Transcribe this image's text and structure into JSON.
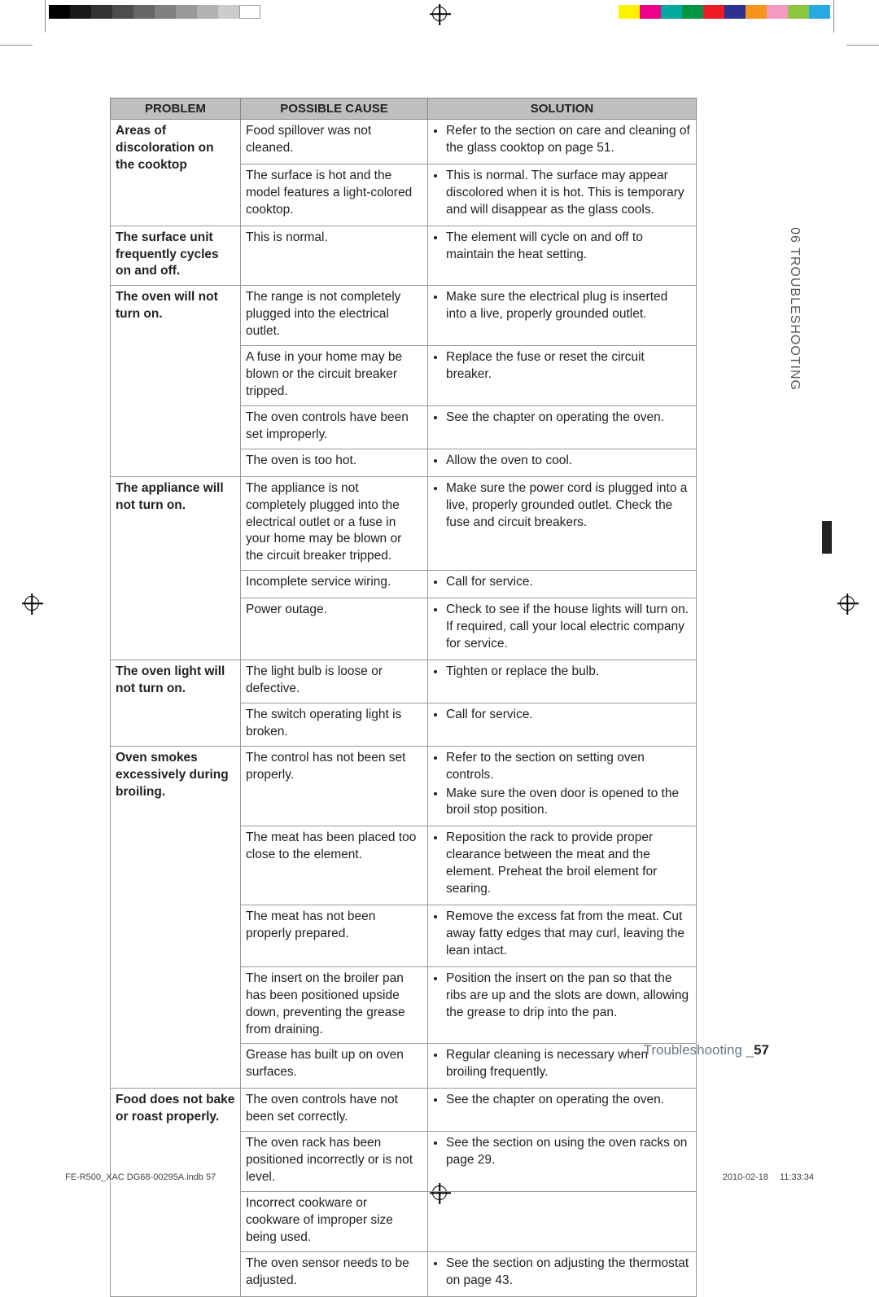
{
  "table": {
    "headers": [
      "PROBLEM",
      "POSSIBLE CAUSE",
      "SOLUTION"
    ],
    "rows": [
      {
        "problem": "Areas of discoloration on the cooktop",
        "causes": [
          {
            "cause": "Food spillover was not cleaned.",
            "solutions": [
              "Refer to the section on care and cleaning of the glass cooktop on page 51."
            ]
          },
          {
            "cause": "The surface is hot and the model features a light-colored cooktop.",
            "solutions": [
              "This is normal. The surface may appear discolored when it is hot. This is temporary and will disappear as the glass cools."
            ]
          }
        ]
      },
      {
        "problem": "The surface unit frequently cycles on and off.",
        "causes": [
          {
            "cause": "This is normal.",
            "solutions": [
              "The element will cycle on and off to maintain the heat setting."
            ]
          }
        ]
      },
      {
        "problem": "The oven will not turn on.",
        "causes": [
          {
            "cause": "The range is not completely plugged into the electrical outlet.",
            "solutions": [
              "Make sure the electrical plug is inserted into a live, properly grounded outlet."
            ]
          },
          {
            "cause": "A fuse in your home may be blown or the circuit breaker tripped.",
            "solutions": [
              "Replace the fuse or reset the circuit breaker."
            ]
          },
          {
            "cause": "The oven controls have been set improperly.",
            "solutions": [
              "See the chapter on operating the oven."
            ]
          },
          {
            "cause": "The oven is too hot.",
            "solutions": [
              "Allow the oven to cool."
            ]
          }
        ]
      },
      {
        "problem": "The appliance will not turn on.",
        "causes": [
          {
            "cause": "The appliance is not completely plugged into the electrical outlet or a fuse in your home may be blown or the circuit breaker tripped.",
            "solutions": [
              "Make sure the power cord is plugged into a live, properly grounded outlet. Check the fuse and circuit breakers."
            ]
          },
          {
            "cause": "Incomplete service wiring.",
            "solutions": [
              "Call for service."
            ]
          },
          {
            "cause": "Power outage.",
            "solutions": [
              "Check to see if the house lights will turn on. If required, call your local electric company for service."
            ]
          }
        ]
      },
      {
        "problem": "The oven light will not turn on.",
        "causes": [
          {
            "cause": "The light bulb is loose or defective.",
            "solutions": [
              "Tighten or replace the bulb."
            ]
          },
          {
            "cause": "The switch operating light is broken.",
            "solutions": [
              "Call for service."
            ]
          }
        ]
      },
      {
        "problem": "Oven smokes excessively during broiling.",
        "causes": [
          {
            "cause": "The control has not been set properly.",
            "solutions": [
              "Refer to the section on setting oven controls.",
              "Make sure the oven door is opened to the broil stop position."
            ]
          },
          {
            "cause": "The meat has been placed too close to the element.",
            "solutions": [
              "Reposition the rack to provide proper clearance between the meat and the element. Preheat the broil element for searing."
            ]
          },
          {
            "cause": "The meat has not been properly prepared.",
            "solutions": [
              "Remove the excess fat from the meat. Cut away fatty edges that may curl, leaving the lean intact."
            ]
          },
          {
            "cause": "The insert on the broiler pan has been positioned upside down, preventing the grease from draining.",
            "solutions": [
              "Position the insert on the pan so that the ribs are up and the slots are down, allowing the grease to drip into the pan."
            ]
          },
          {
            "cause": "Grease has built up on oven surfaces.",
            "solutions": [
              "Regular cleaning is necessary when broiling frequently."
            ]
          }
        ]
      },
      {
        "problem": "Food does not bake or roast properly.",
        "causes": [
          {
            "cause": "The oven controls have not been set correctly.",
            "solutions": [
              "See the chapter on operating the oven."
            ]
          },
          {
            "cause": "The oven rack has been positioned incorrectly or is not level.",
            "solutions": [
              "See the section on using the oven racks on page 29."
            ]
          },
          {
            "cause": "Incorrect cookware or cookware of improper size being used.",
            "solutions": []
          },
          {
            "cause": "The oven sensor needs to be adjusted.",
            "solutions": [
              "See the section on adjusting the thermostat on page 43."
            ]
          }
        ]
      }
    ]
  },
  "side_tab": "06  TROUBLESHOOTING",
  "footer_section": "Troubleshooting _",
  "footer_page": "57",
  "meta_left": "FE-R500_XAC DG68-00295A.indb   57",
  "meta_date": "2010-02-18",
  "meta_time": "11:33:34",
  "swatches_left": [
    "#000000",
    "#1a1a1a",
    "#333333",
    "#4d4d4d",
    "#666666",
    "#808080",
    "#999999",
    "#b3b3b3",
    "#cccccc",
    "#ffffff"
  ],
  "swatches_right": [
    "#fff200",
    "#ec008c",
    "#00a99d",
    "#009444",
    "#ed1c24",
    "#2e3192",
    "#f7941e",
    "#f49ac1",
    "#8dc63f",
    "#27aae1"
  ]
}
